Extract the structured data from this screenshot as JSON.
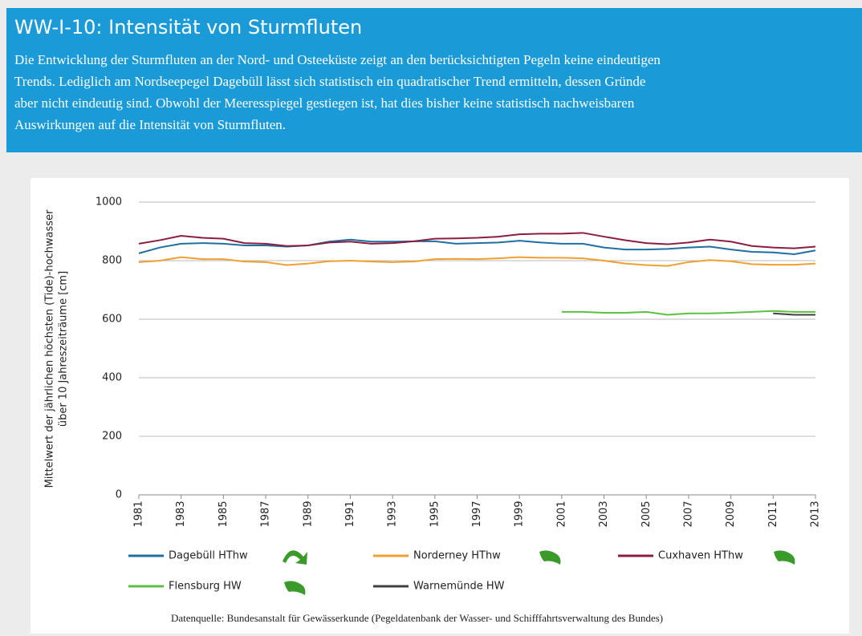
{
  "header": {
    "title": "WW-I-10: Intensität von Sturmfluten",
    "lines": [
      "Die Entwicklung der Sturmfluten an der Nord- und Osteeküste zeigt an den berücksichtigten Pegeln keine eindeutigen",
      "Trends. Lediglich am Nordseepegel Dagebüll lässt sich statistisch ein quadratischer Trend ermitteln, dessen Gründe",
      "aber nicht eindeutig sind. Obwohl der Meeresspiegel gestiegen ist, hat dies bisher keine statistisch nachweisbaren",
      "Auswirkungen auf die Intensität von Sturmfluten."
    ]
  },
  "chart_data": {
    "type": "line",
    "ylabel": [
      "Mittelwert der jährlichen höchsten (Tide)-hochwasser",
      "über 10 Jahreszeiträume [cm]"
    ],
    "x": [
      1981,
      1982,
      1983,
      1984,
      1985,
      1986,
      1987,
      1988,
      1989,
      1990,
      1991,
      1992,
      1993,
      1994,
      1995,
      1996,
      1997,
      1998,
      1999,
      2000,
      2001,
      2002,
      2003,
      2004,
      2005,
      2006,
      2007,
      2008,
      2009,
      2010,
      2011,
      2012,
      2013
    ],
    "xlim": [
      1981,
      2013
    ],
    "xticks": [
      1981,
      1983,
      1985,
      1987,
      1989,
      1991,
      1993,
      1995,
      1997,
      1999,
      2001,
      2003,
      2005,
      2007,
      2009,
      2011,
      2013
    ],
    "ylim": [
      0,
      1000
    ],
    "yticks": [
      0,
      200,
      400,
      600,
      800,
      1000
    ],
    "grid": true,
    "series": [
      {
        "name": "Dagebüll HThw",
        "color": "#1f6fa0",
        "values": [
          825,
          845,
          858,
          860,
          858,
          852,
          852,
          848,
          852,
          865,
          872,
          865,
          865,
          866,
          866,
          858,
          860,
          862,
          868,
          862,
          858,
          858,
          845,
          838,
          838,
          840,
          845,
          848,
          838,
          830,
          828,
          822,
          835
        ]
      },
      {
        "name": "Norderney HThw",
        "color": "#f0a030",
        "values": [
          795,
          800,
          812,
          805,
          805,
          797,
          795,
          785,
          790,
          798,
          800,
          797,
          795,
          797,
          805,
          806,
          805,
          808,
          812,
          810,
          810,
          808,
          800,
          790,
          785,
          782,
          795,
          802,
          798,
          788,
          786,
          786,
          790
        ]
      },
      {
        "name": "Cuxhaven HThw",
        "color": "#8b1e3f",
        "values": [
          858,
          870,
          885,
          878,
          875,
          860,
          858,
          850,
          852,
          862,
          865,
          858,
          860,
          866,
          875,
          876,
          878,
          882,
          890,
          892,
          892,
          895,
          882,
          870,
          860,
          856,
          862,
          872,
          865,
          850,
          845,
          842,
          848
        ]
      },
      {
        "name": "Flensburg HW",
        "color": "#5cc040",
        "values": [
          null,
          null,
          null,
          null,
          null,
          null,
          null,
          null,
          null,
          null,
          null,
          null,
          null,
          null,
          null,
          null,
          null,
          null,
          null,
          null,
          625,
          625,
          622,
          622,
          625,
          615,
          620,
          620,
          622,
          625,
          628,
          625,
          625
        ]
      },
      {
        "name": "Warnemünde HW",
        "color": "#404040",
        "values": [
          null,
          null,
          null,
          null,
          null,
          null,
          null,
          null,
          null,
          null,
          null,
          null,
          null,
          null,
          null,
          null,
          null,
          null,
          null,
          null,
          null,
          null,
          null,
          null,
          null,
          null,
          null,
          null,
          null,
          null,
          620,
          615,
          615
        ]
      }
    ],
    "source": "Datenquelle: Bundesanstalt für Gewässerkunde (Pegeldatenbank der Wasser- und Schifffahrtsverwaltung des Bundes)"
  }
}
